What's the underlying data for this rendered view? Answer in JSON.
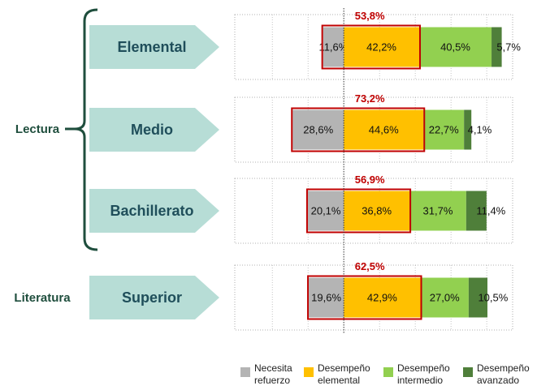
{
  "chart_data": {
    "type": "diverging_bar",
    "categories": [
      "Elemental",
      "Medio",
      "Bachillerato",
      "Superior"
    ],
    "groups": [
      {
        "label": "Lectura",
        "rows": [
          0,
          1,
          2
        ]
      },
      {
        "label": "Literatura",
        "rows": [
          3
        ]
      }
    ],
    "series": [
      {
        "name": "Necesita refuerzo",
        "color": "#b4b4b4",
        "side": "left",
        "values": [
          11.6,
          28.6,
          20.1,
          19.6
        ],
        "value_labels": [
          "11,6%",
          "28,6%",
          "20,1%",
          "19,6%"
        ]
      },
      {
        "name": "Desempeño elemental",
        "color": "#ffc000",
        "side": "right",
        "values": [
          42.2,
          44.6,
          36.8,
          42.9
        ],
        "value_labels": [
          "42,2%",
          "44,6%",
          "36,8%",
          "42,9%"
        ]
      },
      {
        "name": "Desempeño intermedio",
        "color": "#92d050",
        "side": "right",
        "values": [
          40.5,
          22.7,
          31.7,
          27.0
        ],
        "value_labels": [
          "40,5%",
          "22,7%",
          "31,7%",
          "27,0%"
        ]
      },
      {
        "name": "Desempeño avanzado",
        "color": "#4f7f3a",
        "side": "right",
        "values": [
          5.7,
          4.1,
          11.4,
          10.5
        ],
        "value_labels": [
          "5,7%",
          "4,1%",
          "11,4%",
          "10,5%"
        ]
      }
    ],
    "totals": [
      53.8,
      73.2,
      56.9,
      62.5
    ],
    "total_labels": [
      "53,8%",
      "73,2%",
      "56,9%",
      "62,5%"
    ],
    "highlight_color": "#c00000",
    "xlim": [
      -61,
      94.5
    ],
    "xticks": [
      -40,
      -20,
      0,
      20,
      40,
      60,
      80
    ],
    "grid": true
  }
}
